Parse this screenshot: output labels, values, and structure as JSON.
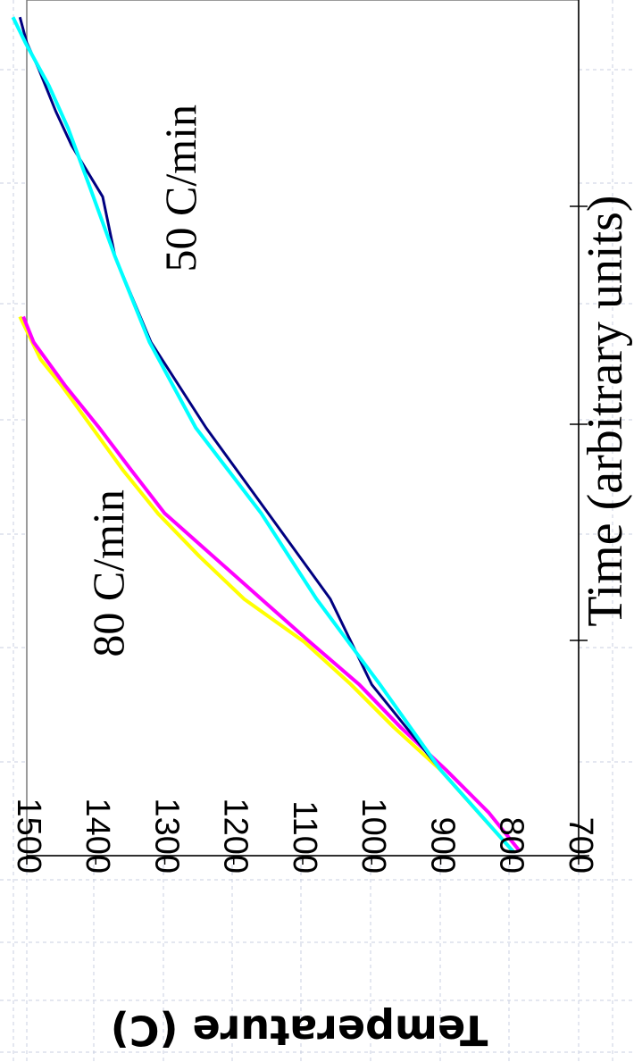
{
  "chart_data": {
    "type": "line",
    "xlabel": "Time (arbitrary units)",
    "ylabel": "Temperature (C)",
    "ylim": [
      700,
      1500
    ],
    "yticks": [
      700,
      800,
      900,
      1000,
      1100,
      1200,
      1300,
      1400,
      1500
    ],
    "ytick_labels": [
      "700",
      "800",
      "900",
      "1000",
      "1100",
      "1200",
      "1300",
      "1400",
      "1500"
    ],
    "xlim": [
      0,
      100
    ],
    "xtick_labels": [],
    "grid": true,
    "rotation_deg": 90,
    "series": [
      {
        "color": "#ffff00",
        "x": [
          0.5,
          5,
          10,
          15,
          20,
          25,
          30,
          35,
          40,
          45,
          50,
          55,
          58,
          63
        ],
        "y": [
          795,
          845,
          900,
          968,
          1030,
          1098,
          1185,
          1250,
          1310,
          1360,
          1405,
          1450,
          1480,
          1510
        ]
      },
      {
        "color": "#ff00ff",
        "x": [
          0.5,
          5,
          10,
          15,
          20,
          25,
          30,
          35,
          40,
          45,
          50,
          55,
          60,
          63
        ],
        "y": [
          785,
          830,
          892,
          958,
          1018,
          1090,
          1160,
          1230,
          1300,
          1348,
          1395,
          1445,
          1490,
          1505
        ]
      },
      {
        "color": "#000080",
        "x": [
          0.5,
          10,
          20,
          30,
          40,
          50,
          60,
          70,
          77,
          83,
          87,
          92,
          95,
          98
        ],
        "y": [
          795,
          900,
          1000,
          1060,
          1150,
          1240,
          1320,
          1372,
          1390,
          1435,
          1458,
          1483,
          1500,
          1510
        ]
      },
      {
        "color": "#00ffff",
        "x": [
          0.5,
          10,
          20,
          30,
          40,
          50,
          60,
          70,
          78,
          85,
          90,
          95,
          98
        ],
        "y": [
          795,
          900,
          988,
          1080,
          1160,
          1255,
          1322,
          1372,
          1408,
          1440,
          1468,
          1502,
          1520
        ]
      }
    ],
    "annotations": [
      {
        "text": "80 C/min",
        "x": 33,
        "y": 1375
      },
      {
        "text": "50 C/min",
        "x": 78,
        "y": 1270
      }
    ]
  }
}
